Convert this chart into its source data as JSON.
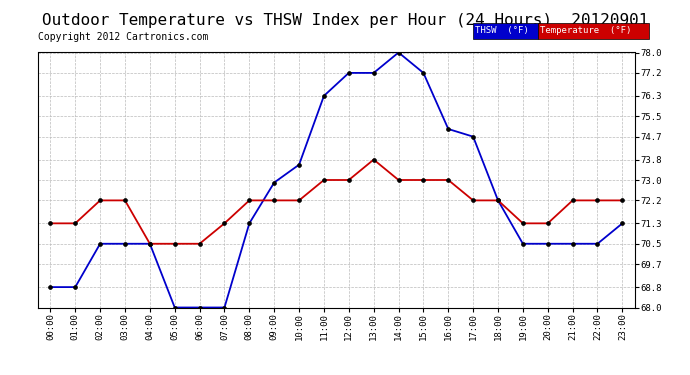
{
  "title": "Outdoor Temperature vs THSW Index per Hour (24 Hours)  20120901",
  "copyright": "Copyright 2012 Cartronics.com",
  "hours": [
    "00:00",
    "01:00",
    "02:00",
    "03:00",
    "04:00",
    "05:00",
    "06:00",
    "07:00",
    "08:00",
    "09:00",
    "10:00",
    "11:00",
    "12:00",
    "13:00",
    "14:00",
    "15:00",
    "16:00",
    "17:00",
    "18:00",
    "19:00",
    "20:00",
    "21:00",
    "22:00",
    "23:00"
  ],
  "thsw": [
    68.8,
    68.8,
    70.5,
    70.5,
    70.5,
    68.0,
    68.0,
    68.0,
    71.3,
    72.9,
    73.6,
    76.3,
    77.2,
    77.2,
    78.0,
    77.2,
    75.0,
    74.7,
    72.2,
    70.5,
    70.5,
    70.5,
    70.5,
    71.3
  ],
  "temperature": [
    71.3,
    71.3,
    72.2,
    72.2,
    70.5,
    70.5,
    70.5,
    71.3,
    72.2,
    72.2,
    72.2,
    73.0,
    73.0,
    73.8,
    73.0,
    73.0,
    73.0,
    72.2,
    72.2,
    71.3,
    71.3,
    72.2,
    72.2,
    72.2
  ],
  "thsw_color": "#0000cc",
  "temp_color": "#cc0000",
  "ylim_min": 68.0,
  "ylim_max": 78.0,
  "yticks": [
    68.0,
    68.8,
    69.7,
    70.5,
    71.3,
    72.2,
    73.0,
    73.8,
    74.7,
    75.5,
    76.3,
    77.2,
    78.0
  ],
  "background_color": "#ffffff",
  "grid_color": "#bbbbbb",
  "title_fontsize": 11.5,
  "copyright_fontsize": 7,
  "legend_thsw_label": "THSW  (°F)",
  "legend_temp_label": "Temperature  (°F)"
}
